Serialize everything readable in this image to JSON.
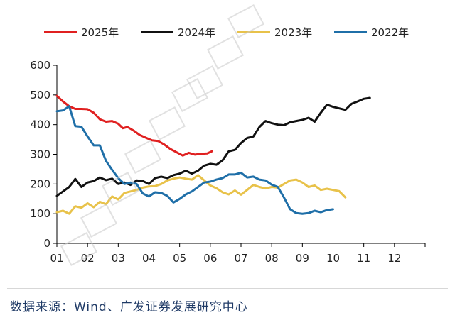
{
  "source_text": "数据来源：Wind、广发证券发展研究中心",
  "chart_data": {
    "type": "line",
    "title": "",
    "xlabel": "",
    "ylabel": "",
    "ylim": [
      0,
      600
    ],
    "xlim": [
      1,
      13
    ],
    "yticks": [
      0,
      100,
      200,
      300,
      400,
      500,
      600
    ],
    "xticks": [
      "01",
      "02",
      "03",
      "04",
      "05",
      "06",
      "07",
      "08",
      "09",
      "10",
      "11",
      "12"
    ],
    "grid": false,
    "legend_position": "top",
    "series": [
      {
        "name": "2025年",
        "color": "#e02020",
        "points": [
          [
            1.0,
            497
          ],
          [
            1.2,
            478
          ],
          [
            1.4,
            462
          ],
          [
            1.6,
            453
          ],
          [
            1.8,
            453
          ],
          [
            2.0,
            452
          ],
          [
            2.2,
            440
          ],
          [
            2.4,
            418
          ],
          [
            2.6,
            410
          ],
          [
            2.8,
            412
          ],
          [
            3.0,
            403
          ],
          [
            3.15,
            388
          ],
          [
            3.3,
            392
          ],
          [
            3.5,
            380
          ],
          [
            3.7,
            365
          ],
          [
            3.9,
            356
          ],
          [
            4.1,
            347
          ],
          [
            4.3,
            345
          ],
          [
            4.5,
            333
          ],
          [
            4.7,
            318
          ],
          [
            4.9,
            307
          ],
          [
            5.1,
            296
          ],
          [
            5.3,
            305
          ],
          [
            5.5,
            299
          ],
          [
            5.7,
            302
          ],
          [
            5.9,
            303
          ],
          [
            6.05,
            310
          ]
        ]
      },
      {
        "name": "2024年",
        "color": "#111111",
        "points": [
          [
            1.0,
            160
          ],
          [
            1.2,
            175
          ],
          [
            1.4,
            190
          ],
          [
            1.6,
            217
          ],
          [
            1.8,
            190
          ],
          [
            2.0,
            205
          ],
          [
            2.2,
            210
          ],
          [
            2.4,
            222
          ],
          [
            2.6,
            213
          ],
          [
            2.8,
            218
          ],
          [
            3.0,
            200
          ],
          [
            3.2,
            205
          ],
          [
            3.4,
            197
          ],
          [
            3.6,
            212
          ],
          [
            3.8,
            210
          ],
          [
            4.0,
            200
          ],
          [
            4.2,
            220
          ],
          [
            4.4,
            225
          ],
          [
            4.6,
            220
          ],
          [
            4.8,
            230
          ],
          [
            5.0,
            235
          ],
          [
            5.2,
            245
          ],
          [
            5.4,
            235
          ],
          [
            5.6,
            245
          ],
          [
            5.8,
            262
          ],
          [
            6.0,
            268
          ],
          [
            6.2,
            265
          ],
          [
            6.4,
            280
          ],
          [
            6.6,
            310
          ],
          [
            6.8,
            315
          ],
          [
            7.0,
            338
          ],
          [
            7.2,
            355
          ],
          [
            7.4,
            360
          ],
          [
            7.6,
            392
          ],
          [
            7.8,
            412
          ],
          [
            8.0,
            405
          ],
          [
            8.2,
            400
          ],
          [
            8.4,
            398
          ],
          [
            8.6,
            408
          ],
          [
            8.8,
            412
          ],
          [
            9.0,
            416
          ],
          [
            9.2,
            423
          ],
          [
            9.4,
            410
          ],
          [
            9.6,
            440
          ],
          [
            9.8,
            467
          ],
          [
            10.0,
            460
          ],
          [
            10.2,
            455
          ],
          [
            10.4,
            450
          ],
          [
            10.6,
            470
          ],
          [
            10.8,
            478
          ],
          [
            11.0,
            487
          ],
          [
            11.2,
            490
          ]
        ]
      },
      {
        "name": "2023年",
        "color": "#e8c24a",
        "points": [
          [
            1.0,
            105
          ],
          [
            1.2,
            110
          ],
          [
            1.4,
            100
          ],
          [
            1.6,
            125
          ],
          [
            1.8,
            120
          ],
          [
            2.0,
            135
          ],
          [
            2.2,
            122
          ],
          [
            2.4,
            140
          ],
          [
            2.6,
            132
          ],
          [
            2.8,
            158
          ],
          [
            3.0,
            148
          ],
          [
            3.2,
            170
          ],
          [
            3.4,
            175
          ],
          [
            3.6,
            180
          ],
          [
            3.8,
            188
          ],
          [
            4.0,
            192
          ],
          [
            4.2,
            193
          ],
          [
            4.4,
            200
          ],
          [
            4.6,
            212
          ],
          [
            4.8,
            218
          ],
          [
            5.0,
            222
          ],
          [
            5.2,
            218
          ],
          [
            5.4,
            215
          ],
          [
            5.6,
            230
          ],
          [
            5.8,
            212
          ],
          [
            6.0,
            195
          ],
          [
            6.2,
            186
          ],
          [
            6.4,
            172
          ],
          [
            6.6,
            165
          ],
          [
            6.8,
            178
          ],
          [
            7.0,
            164
          ],
          [
            7.2,
            180
          ],
          [
            7.4,
            197
          ],
          [
            7.6,
            190
          ],
          [
            7.8,
            185
          ],
          [
            8.0,
            190
          ],
          [
            8.2,
            188
          ],
          [
            8.4,
            200
          ],
          [
            8.6,
            212
          ],
          [
            8.8,
            215
          ],
          [
            9.0,
            205
          ],
          [
            9.2,
            190
          ],
          [
            9.4,
            195
          ],
          [
            9.6,
            180
          ],
          [
            9.8,
            184
          ],
          [
            10.0,
            180
          ],
          [
            10.2,
            176
          ],
          [
            10.4,
            155
          ]
        ]
      },
      {
        "name": "2022年",
        "color": "#1f6fa8",
        "points": [
          [
            1.0,
            445
          ],
          [
            1.2,
            448
          ],
          [
            1.4,
            462
          ],
          [
            1.6,
            395
          ],
          [
            1.8,
            393
          ],
          [
            2.0,
            360
          ],
          [
            2.2,
            330
          ],
          [
            2.4,
            330
          ],
          [
            2.6,
            278
          ],
          [
            2.8,
            248
          ],
          [
            3.0,
            220
          ],
          [
            3.2,
            200
          ],
          [
            3.4,
            205
          ],
          [
            3.6,
            200
          ],
          [
            3.8,
            168
          ],
          [
            4.0,
            158
          ],
          [
            4.2,
            172
          ],
          [
            4.4,
            170
          ],
          [
            4.6,
            160
          ],
          [
            4.8,
            138
          ],
          [
            5.0,
            150
          ],
          [
            5.2,
            165
          ],
          [
            5.4,
            175
          ],
          [
            5.6,
            190
          ],
          [
            5.8,
            205
          ],
          [
            6.0,
            208
          ],
          [
            6.2,
            215
          ],
          [
            6.4,
            220
          ],
          [
            6.6,
            232
          ],
          [
            6.8,
            232
          ],
          [
            7.0,
            238
          ],
          [
            7.2,
            222
          ],
          [
            7.4,
            225
          ],
          [
            7.6,
            215
          ],
          [
            7.8,
            212
          ],
          [
            8.0,
            198
          ],
          [
            8.2,
            190
          ],
          [
            8.4,
            155
          ],
          [
            8.6,
            115
          ],
          [
            8.8,
            102
          ],
          [
            9.0,
            100
          ],
          [
            9.2,
            102
          ],
          [
            9.4,
            110
          ],
          [
            9.6,
            105
          ],
          [
            9.8,
            112
          ],
          [
            10.0,
            115
          ]
        ]
      }
    ]
  }
}
